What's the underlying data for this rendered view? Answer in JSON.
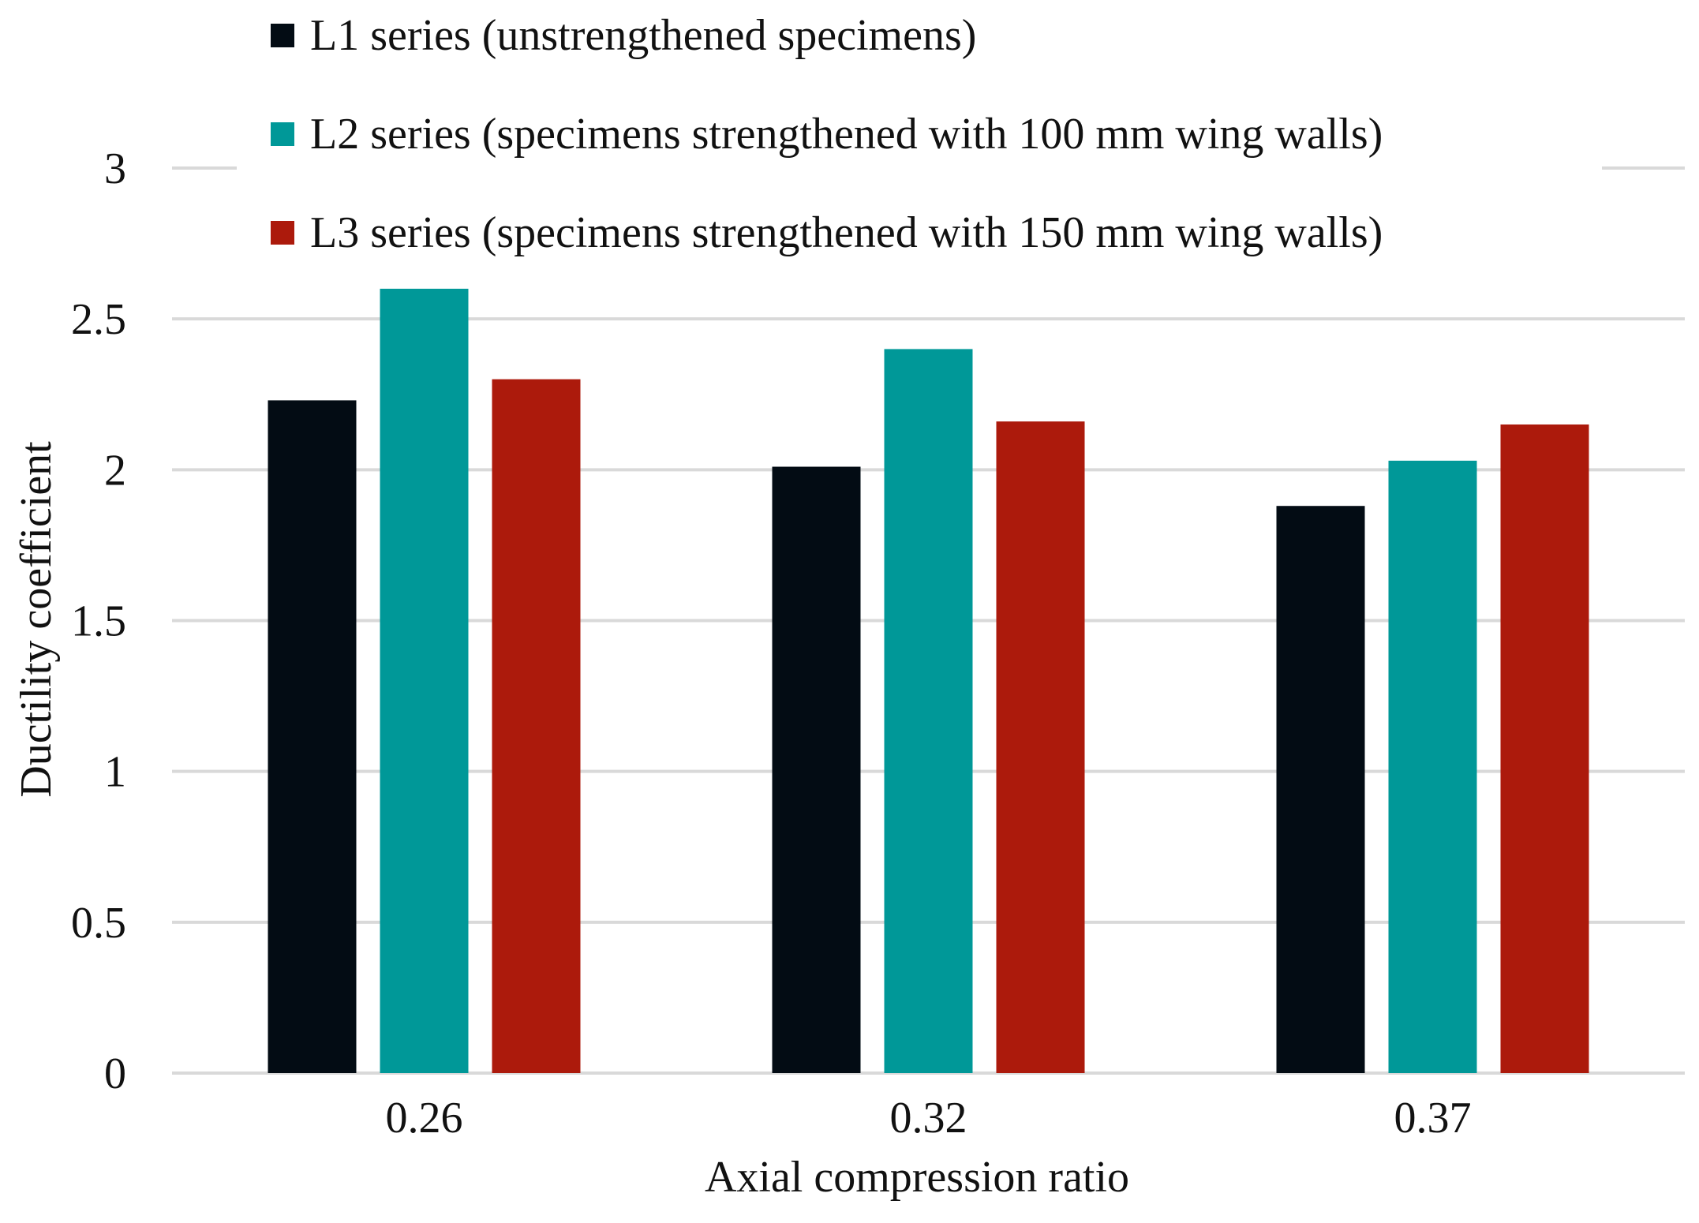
{
  "chart_data": {
    "type": "bar",
    "title": "",
    "xlabel": "Axial compression ratio",
    "ylabel": "Ductility coefficient",
    "categories": [
      "0.26",
      "0.32",
      "0.37"
    ],
    "ylim": [
      0,
      3
    ],
    "yticks": [
      "0",
      "0.5",
      "1",
      "1.5",
      "2",
      "2.5",
      "3"
    ],
    "grid": true,
    "legend_position": "top",
    "series": [
      {
        "name": "L1 series (unstrengthened specimens)",
        "color": "#030c14",
        "values": [
          2.23,
          2.01,
          1.88
        ]
      },
      {
        "name": "L2 series (specimens strengthened with 100 mm wing walls)",
        "color": "#009898",
        "values": [
          2.6,
          2.4,
          2.03
        ]
      },
      {
        "name": "L3 series (specimens strengthened with 150 mm wing walls)",
        "color": "#ac1a0c",
        "values": [
          2.3,
          2.16,
          2.15
        ]
      }
    ],
    "colors": {
      "grid": "#d9d9d9",
      "text": "#111111"
    }
  }
}
